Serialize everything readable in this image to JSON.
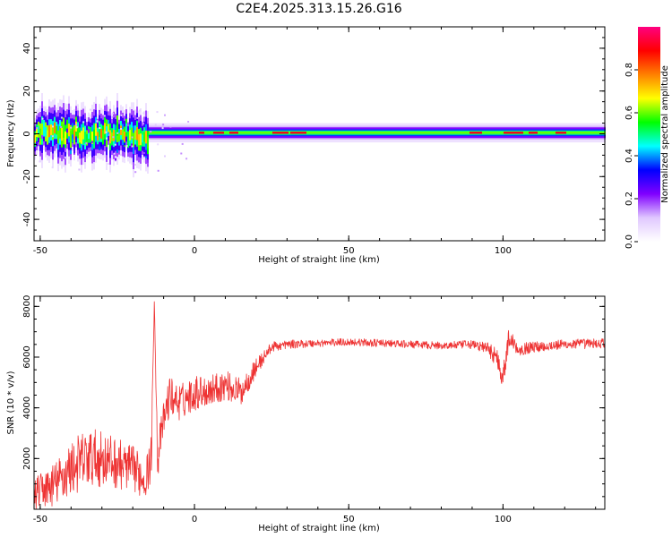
{
  "title": "C2E4.2025.313.15.26.G16",
  "colors": {
    "snr_line": "#ee3333",
    "axis": "#000000",
    "background": "#ffffff"
  },
  "chart_data": [
    {
      "type": "heatmap",
      "name": "spectrogram",
      "xlabel": "Height of straight line (km)",
      "ylabel": "Frequency (Hz)",
      "xlim": [
        -52,
        133
      ],
      "ylim": [
        -50,
        50
      ],
      "xticks": [
        -50,
        0,
        50,
        100
      ],
      "yticks": [
        -40,
        -20,
        0,
        20,
        40
      ],
      "xtick_labels": [
        "-50",
        "0",
        "50",
        "100"
      ],
      "ytick_labels": [
        "-40",
        "-20",
        "0",
        "20",
        "40"
      ],
      "colorbar": {
        "label": "Normalized spectral amplitude",
        "range": [
          0,
          1
        ],
        "ticks": [
          0.0,
          0.2,
          0.4,
          0.6,
          0.8
        ],
        "tick_labels": [
          "0.0",
          "0.2",
          "0.4",
          "0.6",
          "0.8"
        ],
        "colormap": [
          "#ffffff",
          "#e0c8ff",
          "#8000ff",
          "#0000ff",
          "#00ffff",
          "#00ff00",
          "#ffff00",
          "#ff8000",
          "#ff0000",
          "#ff0080"
        ]
      },
      "ridge": {
        "center_hz": 0.5,
        "noisy_region_km": [
          -52,
          -15
        ],
        "noisy_spread_hz": 10,
        "quiet_spread_hz": 2.5,
        "peak_segments_km": [
          [
            1,
            3
          ],
          [
            6,
            9
          ],
          [
            11,
            14
          ],
          [
            25,
            30
          ],
          [
            31,
            36
          ],
          [
            89,
            93
          ],
          [
            100,
            106
          ],
          [
            108,
            111
          ],
          [
            117,
            120
          ]
        ]
      }
    },
    {
      "type": "line",
      "name": "snr",
      "xlabel": "Height of straight line (km)",
      "ylabel": "SNR (10 * v/v)",
      "xlim": [
        -52,
        133
      ],
      "ylim": [
        0,
        8400
      ],
      "xticks": [
        -50,
        0,
        50,
        100
      ],
      "yticks": [
        2000,
        4000,
        6000,
        8000
      ],
      "xtick_labels": [
        "-50",
        "0",
        "50",
        "100"
      ],
      "ytick_labels": [
        "2000",
        "4000",
        "6000",
        "8000"
      ],
      "series": [
        {
          "name": "SNR",
          "x": [
            -52,
            -45,
            -40,
            -35,
            -30,
            -25,
            -20,
            -16,
            -14,
            -13,
            -12,
            -10,
            -8,
            -5,
            0,
            5,
            10,
            15,
            20,
            25,
            30,
            40,
            50,
            60,
            70,
            80,
            90,
            95,
            98,
            100,
            102,
            105,
            110,
            120,
            133
          ],
          "y": [
            600,
            1000,
            1600,
            2000,
            2000,
            1800,
            1600,
            1200,
            2000,
            8300,
            2000,
            3500,
            4500,
            4200,
            4600,
            4700,
            4900,
            4600,
            5600,
            6400,
            6500,
            6550,
            6600,
            6550,
            6500,
            6450,
            6500,
            6350,
            6000,
            5200,
            6800,
            6300,
            6400,
            6500,
            6550
          ],
          "noise_amplitude": [
            600,
            900,
            1100,
            1200,
            1100,
            1000,
            900,
            800,
            900,
            0,
            900,
            700,
            800,
            700,
            700,
            600,
            600,
            550,
            350,
            200,
            170,
            150,
            150,
            150,
            150,
            150,
            170,
            250,
            400,
            500,
            400,
            250,
            220,
            200,
            200
          ]
        }
      ]
    }
  ]
}
